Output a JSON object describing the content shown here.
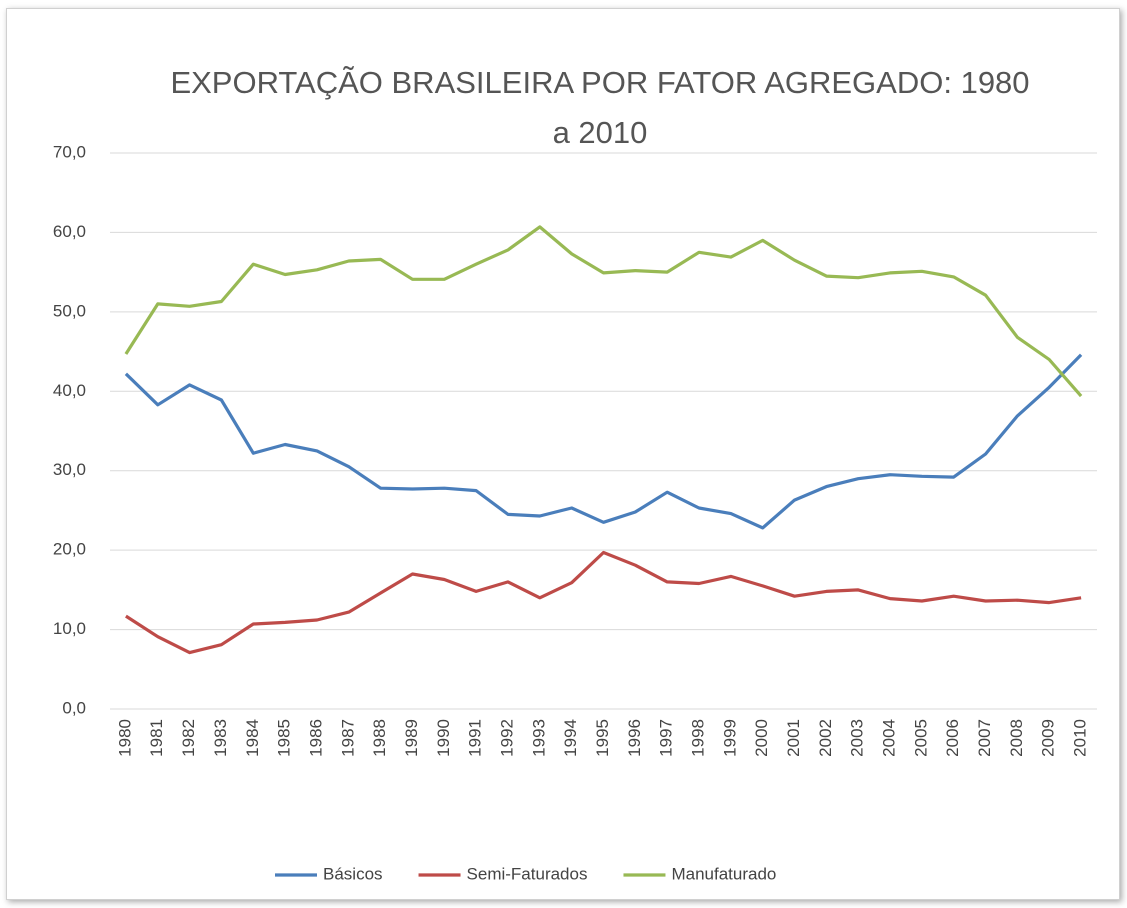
{
  "chart_data": {
    "type": "line",
    "title": "EXPORTAÇÃO BRASILEIRA POR FATOR AGREGADO: 1980 a 2010",
    "categories": [
      "1980",
      "1981",
      "1982",
      "1983",
      "1984",
      "1985",
      "1986",
      "1987",
      "1988",
      "1989",
      "1990",
      "1991",
      "1992",
      "1993",
      "1994",
      "1995",
      "1996",
      "1997",
      "1998",
      "1999",
      "2000",
      "2001",
      "2002",
      "2003",
      "2004",
      "2005",
      "2006",
      "2007",
      "2008",
      "2009",
      "2010"
    ],
    "series": [
      {
        "name": "Básicos",
        "color": "#4a7ebb",
        "values": [
          42.2,
          38.3,
          40.8,
          38.9,
          32.2,
          33.3,
          32.5,
          30.5,
          27.8,
          27.7,
          27.8,
          27.5,
          24.5,
          24.3,
          25.3,
          23.5,
          24.8,
          27.3,
          25.3,
          24.6,
          22.8,
          26.3,
          28.0,
          29.0,
          29.5,
          29.3,
          29.2,
          32.1,
          36.9,
          40.5,
          44.6
        ]
      },
      {
        "name": "Semi-Faturados",
        "color": "#be4b48",
        "values": [
          11.7,
          9.1,
          7.1,
          8.1,
          10.7,
          10.9,
          11.2,
          12.2,
          14.6,
          17.0,
          16.3,
          14.8,
          16.0,
          14.0,
          15.9,
          19.7,
          18.1,
          16.0,
          15.8,
          16.7,
          15.5,
          14.2,
          14.8,
          15.0,
          13.9,
          13.6,
          14.2,
          13.6,
          13.7,
          13.4,
          14.0
        ]
      },
      {
        "name": "Manufaturado",
        "color": "#98b954",
        "values": [
          44.7,
          51.0,
          50.7,
          51.3,
          56.0,
          54.7,
          55.3,
          56.4,
          56.6,
          54.1,
          54.1,
          56.0,
          57.8,
          60.7,
          57.3,
          54.9,
          55.2,
          55.0,
          57.5,
          56.9,
          59.0,
          56.5,
          54.5,
          54.3,
          54.9,
          55.1,
          54.4,
          52.1,
          46.8,
          44.0,
          39.4
        ]
      }
    ],
    "ylim": [
      0,
      70
    ],
    "yticks": [
      {
        "value": 0,
        "label": "0,0"
      },
      {
        "value": 10,
        "label": "10,0"
      },
      {
        "value": 20,
        "label": "20,0"
      },
      {
        "value": 30,
        "label": "30,0"
      },
      {
        "value": 40,
        "label": "40,0"
      },
      {
        "value": 50,
        "label": "50,0"
      },
      {
        "value": 60,
        "label": "60,0"
      },
      {
        "value": 70,
        "label": "70,0"
      }
    ],
    "grid": true,
    "legend": "bottom"
  }
}
